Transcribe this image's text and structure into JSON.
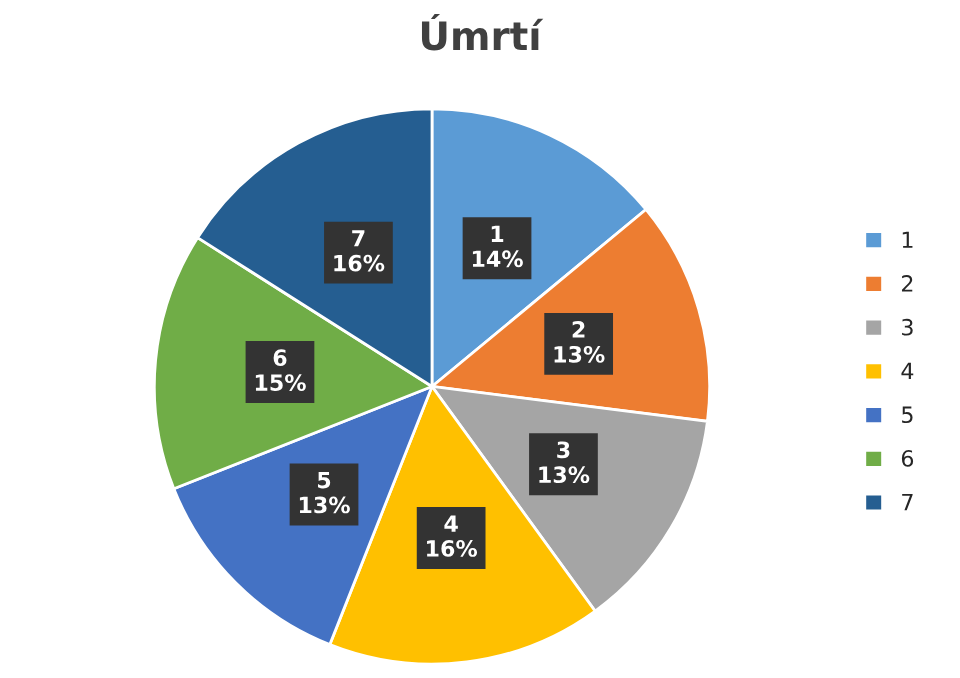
{
  "chart_data": {
    "type": "pie",
    "title": "Úmrtí",
    "categories": [
      "1",
      "2",
      "3",
      "4",
      "5",
      "6",
      "7"
    ],
    "values": [
      14,
      13,
      13,
      16,
      13,
      15,
      16
    ],
    "value_labels": [
      "14%",
      "13%",
      "13%",
      "16%",
      "13%",
      "15%",
      "16%"
    ],
    "colors": [
      "#5b9bd5",
      "#ed7d31",
      "#a5a5a5",
      "#ffc000",
      "#4472c4",
      "#70ad47",
      "#255e91"
    ],
    "legend": "right"
  }
}
